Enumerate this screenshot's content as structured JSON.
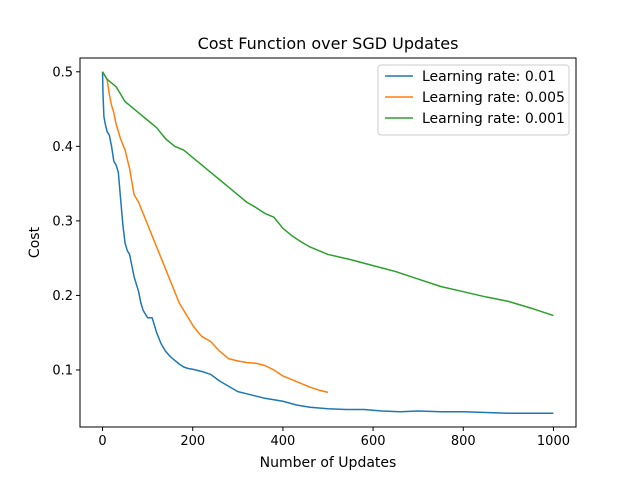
{
  "chart_data": {
    "type": "line",
    "title": "Cost Function over SGD Updates",
    "xlabel": "Number of Updates",
    "ylabel": "Cost",
    "xlim": [
      -50,
      1050
    ],
    "ylim": [
      0.0235,
      0.5185
    ],
    "xticks": [
      0,
      200,
      400,
      600,
      800,
      1000
    ],
    "yticks": [
      0.1,
      0.2,
      0.3,
      0.4,
      0.5
    ],
    "grid": false,
    "legend_position": "top-right",
    "series": [
      {
        "name": "Learning rate: 0.01",
        "color": "#1f77b4",
        "x": [
          0,
          1,
          3,
          6,
          10,
          15,
          20,
          25,
          30,
          35,
          40,
          45,
          50,
          55,
          60,
          65,
          70,
          75,
          80,
          85,
          90,
          95,
          100,
          110,
          120,
          130,
          140,
          150,
          160,
          170,
          180,
          190,
          200,
          220,
          240,
          260,
          280,
          300,
          320,
          340,
          360,
          380,
          400,
          430,
          460,
          500,
          540,
          580,
          620,
          660,
          700,
          750,
          800,
          850,
          900,
          950,
          1000
        ],
        "y": [
          0.5,
          0.47,
          0.44,
          0.43,
          0.42,
          0.415,
          0.4,
          0.38,
          0.375,
          0.365,
          0.33,
          0.295,
          0.27,
          0.26,
          0.255,
          0.24,
          0.225,
          0.215,
          0.205,
          0.19,
          0.18,
          0.175,
          0.17,
          0.17,
          0.15,
          0.135,
          0.125,
          0.118,
          0.113,
          0.108,
          0.104,
          0.102,
          0.101,
          0.098,
          0.094,
          0.085,
          0.078,
          0.071,
          0.068,
          0.065,
          0.062,
          0.06,
          0.058,
          0.053,
          0.05,
          0.048,
          0.047,
          0.047,
          0.045,
          0.044,
          0.045,
          0.044,
          0.044,
          0.043,
          0.042,
          0.042,
          0.042
        ]
      },
      {
        "name": "Learning rate: 0.005",
        "color": "#ff7f0e",
        "x": [
          0,
          5,
          10,
          15,
          20,
          25,
          30,
          40,
          50,
          60,
          70,
          75,
          80,
          90,
          100,
          110,
          120,
          130,
          140,
          150,
          160,
          170,
          180,
          190,
          200,
          210,
          220,
          240,
          260,
          280,
          300,
          320,
          340,
          360,
          380,
          400,
          420,
          440,
          460,
          480,
          500
        ],
        "y": [
          0.5,
          0.495,
          0.49,
          0.47,
          0.455,
          0.445,
          0.43,
          0.41,
          0.395,
          0.37,
          0.335,
          0.33,
          0.325,
          0.31,
          0.295,
          0.28,
          0.265,
          0.25,
          0.235,
          0.22,
          0.205,
          0.19,
          0.18,
          0.17,
          0.16,
          0.152,
          0.145,
          0.138,
          0.125,
          0.115,
          0.112,
          0.11,
          0.109,
          0.106,
          0.1,
          0.092,
          0.087,
          0.082,
          0.077,
          0.073,
          0.07
        ]
      },
      {
        "name": "Learning rate: 0.001",
        "color": "#2ca02c",
        "x": [
          0,
          10,
          20,
          30,
          40,
          50,
          60,
          70,
          80,
          100,
          120,
          140,
          160,
          180,
          200,
          220,
          240,
          260,
          280,
          300,
          320,
          340,
          360,
          380,
          400,
          420,
          440,
          460,
          480,
          500,
          550,
          600,
          650,
          700,
          750,
          800,
          850,
          900,
          950,
          1000
        ],
        "y": [
          0.5,
          0.49,
          0.485,
          0.48,
          0.47,
          0.46,
          0.455,
          0.45,
          0.445,
          0.435,
          0.425,
          0.41,
          0.4,
          0.395,
          0.385,
          0.375,
          0.365,
          0.355,
          0.345,
          0.335,
          0.325,
          0.318,
          0.31,
          0.305,
          0.29,
          0.28,
          0.272,
          0.265,
          0.26,
          0.255,
          0.248,
          0.24,
          0.232,
          0.222,
          0.212,
          0.205,
          0.198,
          0.192,
          0.183,
          0.173
        ]
      }
    ]
  }
}
